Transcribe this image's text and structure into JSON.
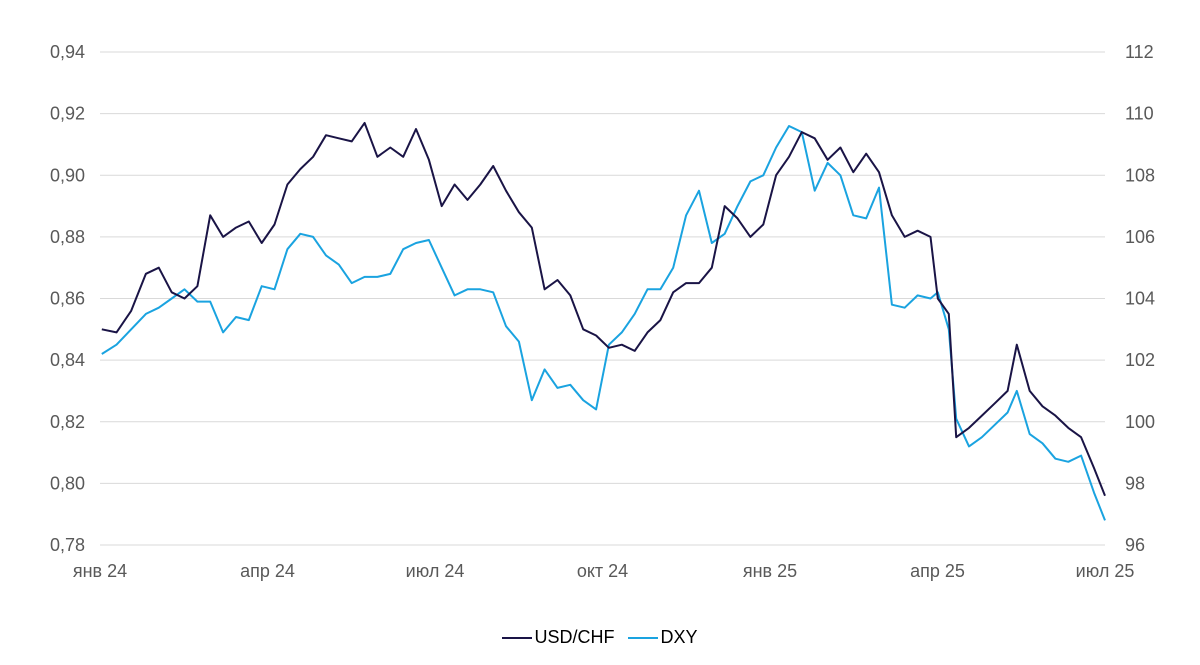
{
  "chart_data": {
    "type": "line",
    "grid": true,
    "legend_position": "bottom-center",
    "x_tick_labels": [
      "янв 24",
      "апр 24",
      "июл 24",
      "окт 24",
      "янв 25",
      "апр 25",
      "июл 25"
    ],
    "y_left_ticks": [
      "0,78",
      "0,80",
      "0,82",
      "0,84",
      "0,86",
      "0,88",
      "0,90",
      "0,92",
      "0,94"
    ],
    "y_right_ticks": [
      "96",
      "98",
      "100",
      "102",
      "104",
      "106",
      "108",
      "110",
      "112"
    ],
    "y_left_range": [
      0.78,
      0.94
    ],
    "y_right_range": [
      96,
      112
    ],
    "x_range": [
      "2024-01-01",
      "2025-07-01"
    ],
    "series": [
      {
        "name": "USD/CHF",
        "axis": "left",
        "color": "#1a1446",
        "points": [
          [
            "2024-01-02",
            0.85
          ],
          [
            "2024-01-10",
            0.849
          ],
          [
            "2024-01-18",
            0.856
          ],
          [
            "2024-01-26",
            0.868
          ],
          [
            "2024-02-02",
            0.87
          ],
          [
            "2024-02-09",
            0.862
          ],
          [
            "2024-02-16",
            0.86
          ],
          [
            "2024-02-23",
            0.864
          ],
          [
            "2024-03-01",
            0.887
          ],
          [
            "2024-03-08",
            0.88
          ],
          [
            "2024-03-15",
            0.883
          ],
          [
            "2024-03-22",
            0.885
          ],
          [
            "2024-03-29",
            0.878
          ],
          [
            "2024-04-05",
            0.884
          ],
          [
            "2024-04-12",
            0.897
          ],
          [
            "2024-04-19",
            0.902
          ],
          [
            "2024-04-26",
            0.906
          ],
          [
            "2024-05-03",
            0.913
          ],
          [
            "2024-05-10",
            0.912
          ],
          [
            "2024-05-17",
            0.911
          ],
          [
            "2024-05-24",
            0.917
          ],
          [
            "2024-05-31",
            0.906
          ],
          [
            "2024-06-07",
            0.909
          ],
          [
            "2024-06-14",
            0.906
          ],
          [
            "2024-06-21",
            0.915
          ],
          [
            "2024-06-28",
            0.905
          ],
          [
            "2024-07-05",
            0.89
          ],
          [
            "2024-07-12",
            0.897
          ],
          [
            "2024-07-19",
            0.892
          ],
          [
            "2024-07-26",
            0.897
          ],
          [
            "2024-08-02",
            0.903
          ],
          [
            "2024-08-09",
            0.895
          ],
          [
            "2024-08-16",
            0.888
          ],
          [
            "2024-08-23",
            0.883
          ],
          [
            "2024-08-30",
            0.863
          ],
          [
            "2024-09-06",
            0.866
          ],
          [
            "2024-09-13",
            0.861
          ],
          [
            "2024-09-20",
            0.85
          ],
          [
            "2024-09-27",
            0.848
          ],
          [
            "2024-10-04",
            0.844
          ],
          [
            "2024-10-11",
            0.845
          ],
          [
            "2024-10-18",
            0.843
          ],
          [
            "2024-10-25",
            0.849
          ],
          [
            "2024-11-01",
            0.853
          ],
          [
            "2024-11-08",
            0.862
          ],
          [
            "2024-11-15",
            0.865
          ],
          [
            "2024-11-22",
            0.865
          ],
          [
            "2024-11-29",
            0.87
          ],
          [
            "2024-12-06",
            0.89
          ],
          [
            "2024-12-13",
            0.886
          ],
          [
            "2024-12-20",
            0.88
          ],
          [
            "2024-12-27",
            0.884
          ],
          [
            "2025-01-03",
            0.9
          ],
          [
            "2025-01-10",
            0.906
          ],
          [
            "2025-01-17",
            0.914
          ],
          [
            "2025-01-24",
            0.912
          ],
          [
            "2025-01-31",
            0.905
          ],
          [
            "2025-02-07",
            0.909
          ],
          [
            "2025-02-14",
            0.901
          ],
          [
            "2025-02-21",
            0.907
          ],
          [
            "2025-02-28",
            0.901
          ],
          [
            "2025-03-07",
            0.887
          ],
          [
            "2025-03-14",
            0.88
          ],
          [
            "2025-03-21",
            0.882
          ],
          [
            "2025-03-28",
            0.88
          ],
          [
            "2025-04-01",
            0.86
          ],
          [
            "2025-04-07",
            0.855
          ],
          [
            "2025-04-11",
            0.815
          ],
          [
            "2025-04-18",
            0.818
          ],
          [
            "2025-04-25",
            0.822
          ],
          [
            "2025-05-02",
            0.826
          ],
          [
            "2025-05-09",
            0.83
          ],
          [
            "2025-05-14",
            0.845
          ],
          [
            "2025-05-21",
            0.83
          ],
          [
            "2025-05-28",
            0.825
          ],
          [
            "2025-06-04",
            0.822
          ],
          [
            "2025-06-11",
            0.818
          ],
          [
            "2025-06-18",
            0.815
          ],
          [
            "2025-06-25",
            0.805
          ],
          [
            "2025-07-01",
            0.796
          ]
        ]
      },
      {
        "name": "DXY",
        "axis": "right",
        "color": "#1aa3e0",
        "points": [
          [
            "2024-01-02",
            102.2
          ],
          [
            "2024-01-10",
            102.5
          ],
          [
            "2024-01-18",
            103.0
          ],
          [
            "2024-01-26",
            103.5
          ],
          [
            "2024-02-02",
            103.7
          ],
          [
            "2024-02-09",
            104.0
          ],
          [
            "2024-02-16",
            104.3
          ],
          [
            "2024-02-23",
            103.9
          ],
          [
            "2024-03-01",
            103.9
          ],
          [
            "2024-03-08",
            102.9
          ],
          [
            "2024-03-15",
            103.4
          ],
          [
            "2024-03-22",
            103.3
          ],
          [
            "2024-03-29",
            104.4
          ],
          [
            "2024-04-05",
            104.3
          ],
          [
            "2024-04-12",
            105.6
          ],
          [
            "2024-04-19",
            106.1
          ],
          [
            "2024-04-26",
            106.0
          ],
          [
            "2024-05-03",
            105.4
          ],
          [
            "2024-05-10",
            105.1
          ],
          [
            "2024-05-17",
            104.5
          ],
          [
            "2024-05-24",
            104.7
          ],
          [
            "2024-05-31",
            104.7
          ],
          [
            "2024-06-07",
            104.8
          ],
          [
            "2024-06-14",
            105.6
          ],
          [
            "2024-06-21",
            105.8
          ],
          [
            "2024-06-28",
            105.9
          ],
          [
            "2024-07-05",
            105.0
          ],
          [
            "2024-07-12",
            104.1
          ],
          [
            "2024-07-19",
            104.3
          ],
          [
            "2024-07-26",
            104.3
          ],
          [
            "2024-08-02",
            104.2
          ],
          [
            "2024-08-09",
            103.1
          ],
          [
            "2024-08-16",
            102.6
          ],
          [
            "2024-08-23",
            100.7
          ],
          [
            "2024-08-30",
            101.7
          ],
          [
            "2024-09-06",
            101.1
          ],
          [
            "2024-09-13",
            101.2
          ],
          [
            "2024-09-20",
            100.7
          ],
          [
            "2024-09-27",
            100.4
          ],
          [
            "2024-10-04",
            102.5
          ],
          [
            "2024-10-11",
            102.9
          ],
          [
            "2024-10-18",
            103.5
          ],
          [
            "2024-10-25",
            104.3
          ],
          [
            "2024-11-01",
            104.3
          ],
          [
            "2024-11-08",
            105.0
          ],
          [
            "2024-11-15",
            106.7
          ],
          [
            "2024-11-22",
            107.5
          ],
          [
            "2024-11-29",
            105.8
          ],
          [
            "2024-12-06",
            106.1
          ],
          [
            "2024-12-13",
            107.0
          ],
          [
            "2024-12-20",
            107.8
          ],
          [
            "2024-12-27",
            108.0
          ],
          [
            "2025-01-03",
            108.9
          ],
          [
            "2025-01-10",
            109.6
          ],
          [
            "2025-01-17",
            109.4
          ],
          [
            "2025-01-24",
            107.5
          ],
          [
            "2025-01-31",
            108.4
          ],
          [
            "2025-02-07",
            108.0
          ],
          [
            "2025-02-14",
            106.7
          ],
          [
            "2025-02-21",
            106.6
          ],
          [
            "2025-02-28",
            107.6
          ],
          [
            "2025-03-07",
            103.8
          ],
          [
            "2025-03-14",
            103.7
          ],
          [
            "2025-03-21",
            104.1
          ],
          [
            "2025-03-28",
            104.0
          ],
          [
            "2025-04-01",
            104.2
          ],
          [
            "2025-04-07",
            103.0
          ],
          [
            "2025-04-11",
            100.1
          ],
          [
            "2025-04-18",
            99.2
          ],
          [
            "2025-04-25",
            99.5
          ],
          [
            "2025-05-02",
            99.9
          ],
          [
            "2025-05-09",
            100.3
          ],
          [
            "2025-05-14",
            101.0
          ],
          [
            "2025-05-21",
            99.6
          ],
          [
            "2025-05-28",
            99.3
          ],
          [
            "2025-06-04",
            98.8
          ],
          [
            "2025-06-11",
            98.7
          ],
          [
            "2025-06-18",
            98.9
          ],
          [
            "2025-06-25",
            97.7
          ],
          [
            "2025-07-01",
            96.8
          ]
        ]
      }
    ]
  },
  "legend": {
    "items": [
      {
        "label": "USD/CHF",
        "color": "#1a1446"
      },
      {
        "label": "DXY",
        "color": "#1aa3e0"
      }
    ]
  }
}
